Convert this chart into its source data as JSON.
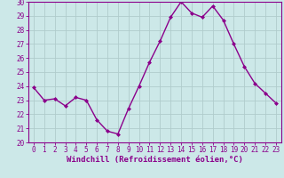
{
  "x": [
    0,
    1,
    2,
    3,
    4,
    5,
    6,
    7,
    8,
    9,
    10,
    11,
    12,
    13,
    14,
    15,
    16,
    17,
    18,
    19,
    20,
    21,
    22,
    23
  ],
  "y": [
    23.9,
    23.0,
    23.1,
    22.6,
    23.2,
    23.0,
    21.6,
    20.8,
    20.6,
    22.4,
    24.0,
    25.7,
    27.2,
    28.9,
    30.0,
    29.2,
    28.9,
    29.7,
    28.7,
    27.0,
    25.4,
    24.2,
    23.5,
    22.8
  ],
  "line_color": "#8b008b",
  "marker": "D",
  "marker_size": 2.0,
  "linewidth": 1.0,
  "xlabel": "Windchill (Refroidissement éolien,°C)",
  "ylim": [
    20,
    30
  ],
  "xlim_min": -0.5,
  "xlim_max": 23.5,
  "yticks": [
    20,
    21,
    22,
    23,
    24,
    25,
    26,
    27,
    28,
    29,
    30
  ],
  "xticks": [
    0,
    1,
    2,
    3,
    4,
    5,
    6,
    7,
    8,
    9,
    10,
    11,
    12,
    13,
    14,
    15,
    16,
    17,
    18,
    19,
    20,
    21,
    22,
    23
  ],
  "background_color": "#cce8e8",
  "grid_color": "#b0cccc",
  "tick_label_color": "#8b008b",
  "tick_label_fontsize": 5.5,
  "xlabel_fontsize": 6.5,
  "xlabel_color": "#8b008b",
  "xlabel_weight": "bold",
  "spine_color": "#8b008b"
}
